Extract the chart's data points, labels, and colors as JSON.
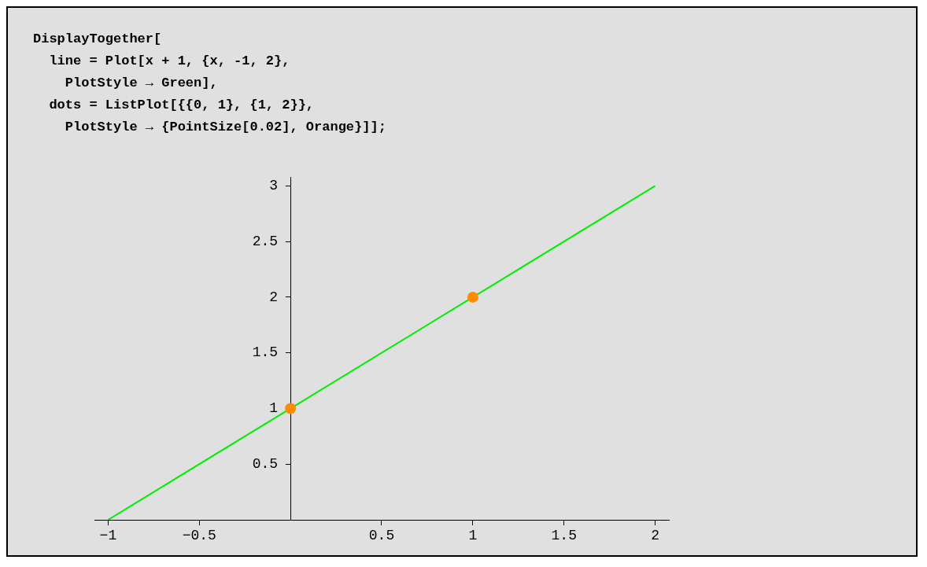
{
  "chart_data": {
    "type": "line",
    "annotations": [
      "DisplayTogether[",
      "  line = Plot[x + 1, {x, -1, 2},",
      "    PlotStyle → Green],",
      "  dots = ListPlot[{{0, 1}, {1, 2}},",
      "    PlotStyle → {PointSize[0.02], Orange}]];"
    ],
    "series": [
      {
        "type": "line",
        "x": [
          -1,
          2
        ],
        "values": [
          0,
          3
        ],
        "color": "#00ee00",
        "marker": "none"
      },
      {
        "type": "scatter",
        "x": [
          0,
          1
        ],
        "values": [
          1,
          2
        ],
        "color": "#ff8c00",
        "marker": "circle"
      }
    ],
    "xlim": [
      -1.075,
      2.075
    ],
    "ylim": [
      0,
      3.08
    ],
    "xticks": [
      -1,
      -0.5,
      0.5,
      1,
      1.5,
      2
    ],
    "yticks": [
      0.5,
      1,
      1.5,
      2,
      2.5,
      3
    ],
    "grid": false,
    "legend": false
  }
}
